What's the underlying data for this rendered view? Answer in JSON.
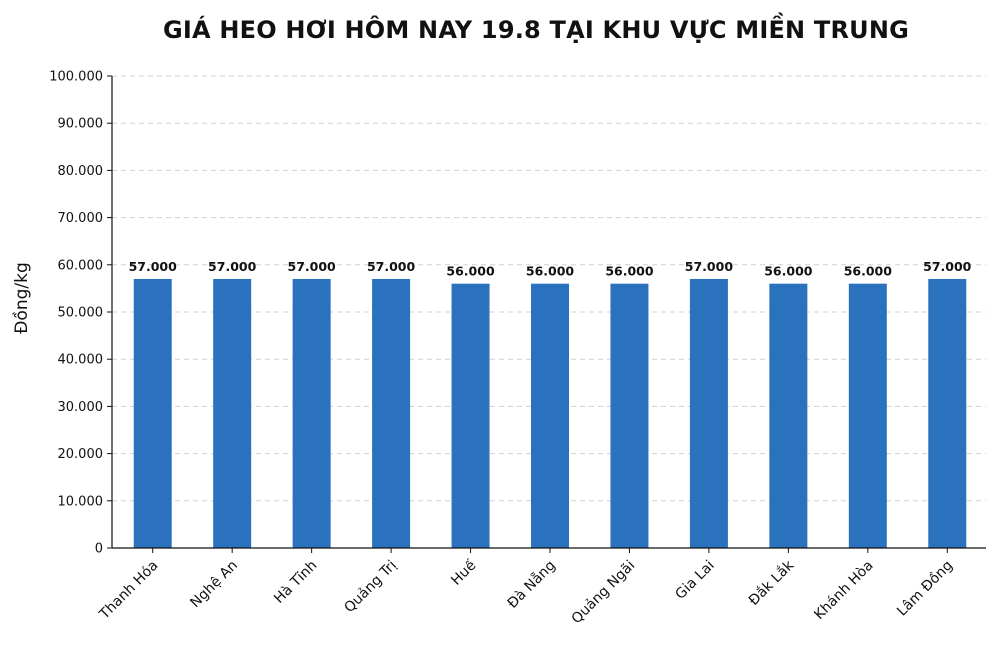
{
  "chart_data": {
    "type": "bar",
    "title": "GIÁ HEO HƠI HÔM NAY 19.8 TẠI KHU VỰC MIỀN TRUNG",
    "xlabel": "",
    "ylabel": "Đồng/kg",
    "categories": [
      "Thanh Hóa",
      "Nghệ An",
      "Hà Tĩnh",
      "Quảng Trị",
      "Huế",
      "Đà Nẵng",
      "Quảng Ngãi",
      "Gia Lai",
      "Đắk Lắk",
      "Khánh Hòa",
      "Lâm Đồng"
    ],
    "values": [
      57000,
      57000,
      57000,
      57000,
      56000,
      56000,
      56000,
      57000,
      56000,
      56000,
      57000
    ],
    "data_labels": [
      "57.000",
      "57.000",
      "57.000",
      "57.000",
      "56.000",
      "56.000",
      "56.000",
      "57.000",
      "56.000",
      "56.000",
      "57.000"
    ],
    "ylim": [
      0,
      100000
    ],
    "yticks": [
      0,
      10000,
      20000,
      30000,
      40000,
      50000,
      60000,
      70000,
      80000,
      90000,
      100000
    ],
    "ytick_labels": [
      "0",
      "10.000",
      "20.000",
      "30.000",
      "40.000",
      "50.000",
      "60.000",
      "70.000",
      "80.000",
      "90.000",
      "100.000"
    ],
    "grid": "horizontal-dashed",
    "legend": "none",
    "colors": {
      "bar": "#2a72bd",
      "grid": "#d0d0d0",
      "axis": "#111111"
    }
  }
}
